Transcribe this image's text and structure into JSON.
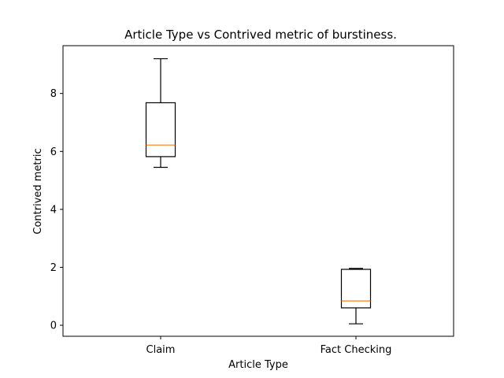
{
  "chart_data": {
    "type": "box",
    "title": "Article Type vs Contrived metric of burstiness.",
    "xlabel": "Article Type",
    "ylabel": "Contrived metric",
    "categories": [
      "Claim",
      "Fact Checking"
    ],
    "boxes": [
      {
        "category": "Claim",
        "whisker_low": 5.45,
        "q1": 5.82,
        "median": 6.22,
        "q3": 7.68,
        "whisker_high": 9.2
      },
      {
        "category": "Fact Checking",
        "whisker_low": 0.05,
        "q1": 0.6,
        "median": 0.84,
        "q3": 1.93,
        "whisker_high": 1.96
      }
    ],
    "ylim": [
      -0.38,
      9.65
    ],
    "yticks": [
      0,
      2,
      4,
      6,
      8
    ],
    "grid": false,
    "colors": {
      "box": "#000000",
      "median": "#ff7f0e",
      "whisker": "#000000"
    }
  }
}
